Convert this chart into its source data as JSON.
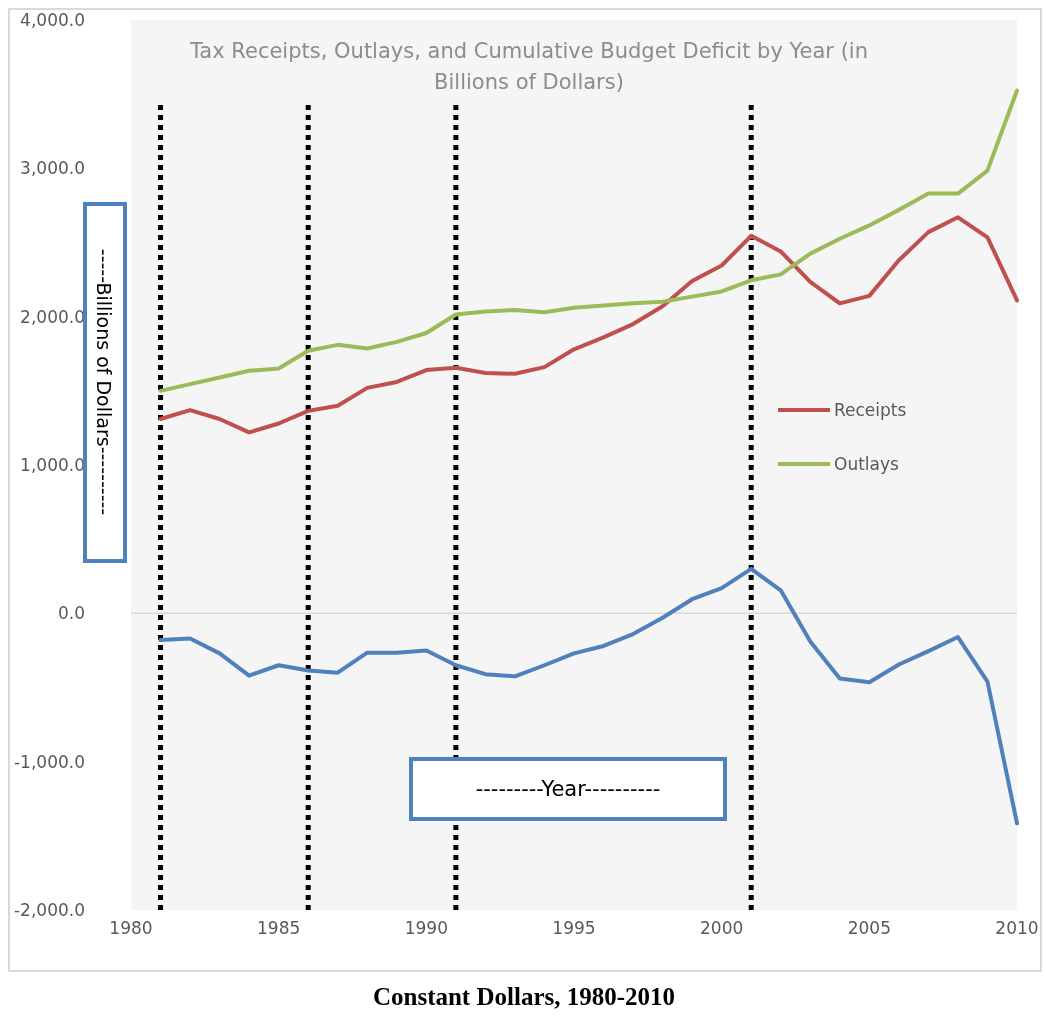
{
  "chart_data": {
    "type": "line",
    "title": "Tax Receipts, Outlays, and Cumulative Budget Deficit by Year (in Billions of Dollars)",
    "xlabel": "---------Year----------",
    "ylabel": "-----Billions of Dollars----------",
    "annotations": [
      "Constant Dollars, 1980-2010"
    ],
    "x": [
      1981,
      1982,
      1983,
      1984,
      1985,
      1986,
      1987,
      1988,
      1989,
      1990,
      1991,
      1992,
      1993,
      1994,
      1995,
      1996,
      1997,
      1998,
      1999,
      2000,
      2001,
      2002,
      2003,
      2004,
      2005,
      2006,
      2007,
      2008,
      2009,
      2010
    ],
    "series": [
      {
        "name": "Receipts",
        "color": "#c0504d",
        "values": [
          1310,
          1370,
          1310,
          1220,
          1280,
          1365,
          1400,
          1520,
          1560,
          1640,
          1655,
          1620,
          1615,
          1660,
          1780,
          1860,
          1950,
          2070,
          2240,
          2345,
          2545,
          2440,
          2235,
          2090,
          2140,
          2380,
          2570,
          2670,
          2535,
          2110
        ]
      },
      {
        "name": "Outlays",
        "color": "#9bbb59",
        "values": [
          1500,
          1545,
          1590,
          1635,
          1650,
          1770,
          1810,
          1785,
          1830,
          1890,
          2015,
          2035,
          2045,
          2030,
          2060,
          2075,
          2090,
          2100,
          2135,
          2170,
          2245,
          2285,
          2425,
          2525,
          2615,
          2720,
          2830,
          2830,
          2985,
          3525
        ]
      },
      {
        "color": "#4f81bd",
        "values": [
          -180,
          -170,
          -270,
          -420,
          -350,
          -385,
          -400,
          -265,
          -265,
          -250,
          -350,
          -410,
          -425,
          -350,
          -270,
          -220,
          -140,
          -30,
          95,
          170,
          300,
          155,
          -190,
          -440,
          -465,
          -345,
          -255,
          -160,
          -460,
          -1415
        ]
      }
    ],
    "xlim": [
      1980,
      2010
    ],
    "xticks": [
      1980,
      1985,
      1990,
      1995,
      2000,
      2005,
      2010
    ],
    "ylim": [
      -2000,
      4000
    ],
    "yticks": [
      {
        "value": -2000,
        "label": "-2,000.0"
      },
      {
        "value": -1000,
        "label": "-1,000.0"
      },
      {
        "value": 0,
        "label": "0.0"
      },
      {
        "value": 1000,
        "label": "1,000.0"
      },
      {
        "value": 2000,
        "label": "2,000.0"
      },
      {
        "value": 3000,
        "label": "3,000.0"
      },
      {
        "value": 4000,
        "label": "4,000.0"
      }
    ],
    "ref_lines": [
      {
        "axis": "y",
        "value": 0,
        "color": "#d9d9d9",
        "line_style": "solid"
      },
      {
        "axis": "x",
        "value": 1981,
        "color": "#000000",
        "line_style": "dotted"
      },
      {
        "axis": "x",
        "value": 1986,
        "color": "#000000",
        "line_style": "dotted"
      },
      {
        "axis": "x",
        "value": 1991,
        "color": "#000000",
        "line_style": "dotted"
      },
      {
        "axis": "x",
        "value": 2001,
        "color": "#000000",
        "line_style": "dotted"
      }
    ],
    "grid": false,
    "legend": "right",
    "marker": "none",
    "line_style": "solid"
  }
}
